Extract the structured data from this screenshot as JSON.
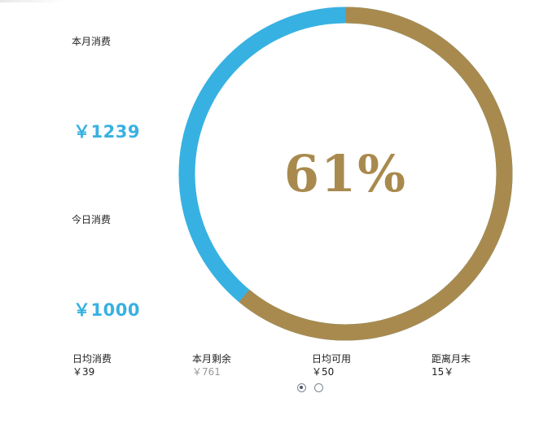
{
  "colors": {
    "accent_blue": "#37b1e2",
    "accent_gold": "#a98a4e",
    "text_dark": "#222222",
    "text_muted": "#999999"
  },
  "summary": {
    "month_label": "本月消费",
    "month_amount": "￥1239",
    "today_label": "今日消费",
    "today_amount": "￥1000"
  },
  "ring": {
    "percent_text": "61%",
    "fraction": 0.61
  },
  "stats": [
    {
      "title": "日均消费",
      "value": "￥39"
    },
    {
      "title": "本月剩余",
      "value": "￥761"
    },
    {
      "title": "日均可用",
      "value": "￥50"
    },
    {
      "title": "距离月末",
      "value": "15￥"
    }
  ],
  "pager": {
    "page_count": 2,
    "active_index": 0
  }
}
